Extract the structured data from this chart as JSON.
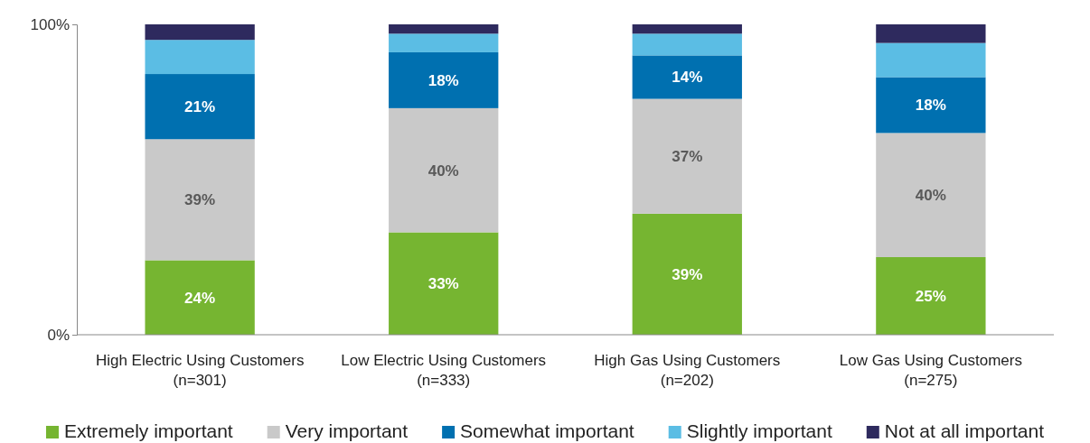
{
  "chart_data": {
    "type": "bar",
    "stacked": true,
    "categories": [
      "High Electric Using Customers\n(n=301)",
      "Low Electric Using Customers\n(n=333)",
      "High Gas Using Customers\n(n=202)",
      "Low Gas Using Customers\n(n=275)"
    ],
    "ylim": [
      0,
      100
    ],
    "yticks": [
      {
        "value": 0,
        "label": "0%"
      },
      {
        "value": 100,
        "label": "100%"
      }
    ],
    "legend": "bottom",
    "series": [
      {
        "name": "Extremely important",
        "color": "#76b531",
        "values": [
          24,
          33,
          39,
          25
        ],
        "value_labels": [
          "24%",
          "33%",
          "39%",
          "25%"
        ]
      },
      {
        "name": "Very important",
        "color": "#c9c9c9",
        "values": [
          39,
          40,
          37,
          40
        ],
        "value_labels": [
          "39%",
          "40%",
          "37%",
          "40%"
        ]
      },
      {
        "name": "Somewhat important",
        "color": "#0070b0",
        "values": [
          21,
          18,
          14,
          18
        ],
        "value_labels": [
          "21%",
          "18%",
          "14%",
          "18%"
        ]
      },
      {
        "name": "Slightly important",
        "color": "#5bbde4",
        "values": [
          11,
          6,
          7,
          11
        ],
        "value_labels": [
          null,
          null,
          null,
          null
        ]
      },
      {
        "name": "Not at all important",
        "color": "#2e2a5e",
        "values": [
          5,
          3,
          3,
          6
        ],
        "value_labels": [
          null,
          null,
          null,
          null
        ]
      }
    ]
  }
}
